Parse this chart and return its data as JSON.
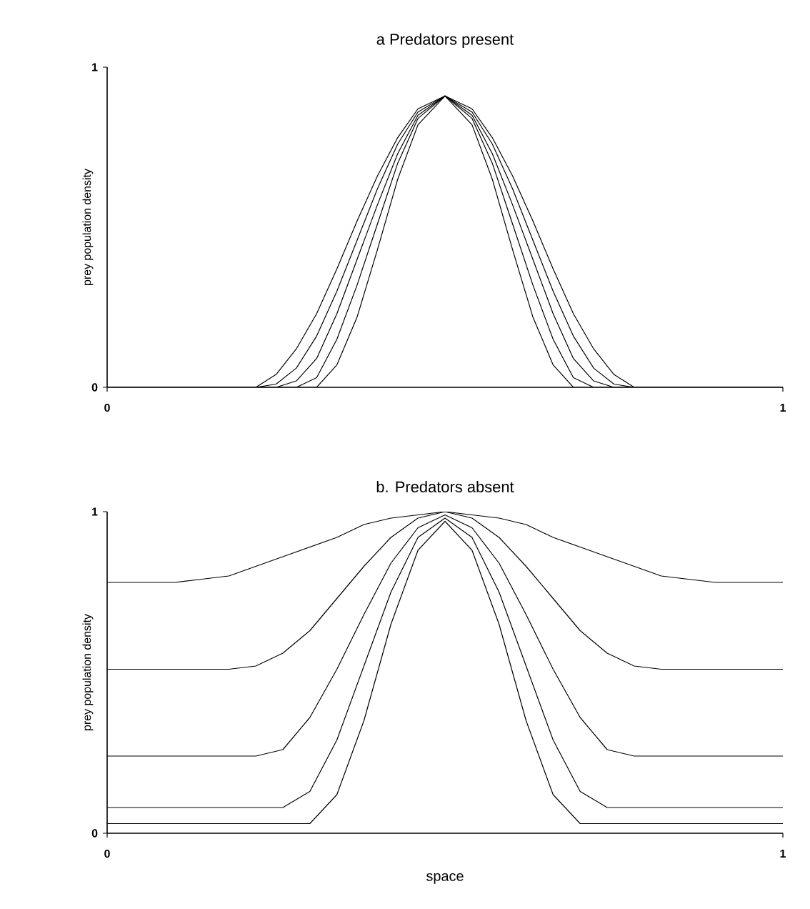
{
  "chart_data": [
    {
      "type": "line",
      "title": "a  Predators  present",
      "ylabel": "prey population density",
      "xlim": [
        0,
        1
      ],
      "ylim": [
        0,
        1
      ],
      "xticks": [
        0,
        1
      ],
      "yticks": [
        0,
        1
      ],
      "x": [
        0,
        0.22,
        0.25,
        0.28,
        0.31,
        0.34,
        0.37,
        0.4,
        0.43,
        0.46,
        0.5,
        0.54,
        0.57,
        0.6,
        0.63,
        0.66,
        0.69,
        0.72,
        0.75,
        0.78,
        1
      ],
      "series": [
        {
          "color": "#000000",
          "values": [
            0,
            0,
            0.04,
            0.12,
            0.23,
            0.37,
            0.52,
            0.66,
            0.78,
            0.87,
            0.91,
            0.87,
            0.78,
            0.66,
            0.52,
            0.37,
            0.23,
            0.12,
            0.04,
            0,
            0
          ]
        },
        {
          "color": "#000000",
          "values": [
            0,
            0,
            0.01,
            0.06,
            0.16,
            0.3,
            0.46,
            0.62,
            0.76,
            0.86,
            0.91,
            0.86,
            0.76,
            0.62,
            0.46,
            0.3,
            0.16,
            0.06,
            0.01,
            0,
            0
          ]
        },
        {
          "color": "#000000",
          "values": [
            0,
            0,
            0,
            0.02,
            0.09,
            0.23,
            0.4,
            0.57,
            0.73,
            0.85,
            0.91,
            0.85,
            0.73,
            0.57,
            0.4,
            0.23,
            0.09,
            0.02,
            0,
            0,
            0
          ]
        },
        {
          "color": "#000000",
          "values": [
            0,
            0,
            0,
            0,
            0.03,
            0.15,
            0.32,
            0.51,
            0.7,
            0.84,
            0.91,
            0.84,
            0.7,
            0.51,
            0.32,
            0.15,
            0.03,
            0,
            0,
            0,
            0
          ]
        },
        {
          "color": "#000000",
          "values": [
            0,
            0,
            0,
            0,
            0,
            0.07,
            0.22,
            0.43,
            0.65,
            0.82,
            0.91,
            0.82,
            0.65,
            0.43,
            0.22,
            0.07,
            0,
            0,
            0,
            0,
            0
          ]
        }
      ]
    },
    {
      "type": "line",
      "title": "b. Predators absent",
      "xlabel": "space",
      "ylabel": "prey population density",
      "xlim": [
        0,
        1
      ],
      "ylim": [
        0,
        1
      ],
      "xticks": [
        0,
        1
      ],
      "yticks": [
        0,
        1
      ],
      "x": [
        0,
        0.1,
        0.14,
        0.18,
        0.22,
        0.26,
        0.3,
        0.34,
        0.38,
        0.42,
        0.46,
        0.5,
        0.54,
        0.58,
        0.62,
        0.66,
        0.7,
        0.74,
        0.78,
        0.82,
        0.86,
        0.9,
        1
      ],
      "series": [
        {
          "color": "#000000",
          "values": [
            0.78,
            0.78,
            0.79,
            0.8,
            0.83,
            0.86,
            0.89,
            0.92,
            0.96,
            0.98,
            0.99,
            1.0,
            0.99,
            0.98,
            0.96,
            0.92,
            0.89,
            0.86,
            0.83,
            0.8,
            0.79,
            0.78,
            0.78
          ]
        },
        {
          "color": "#000000",
          "values": [
            0.51,
            0.51,
            0.51,
            0.51,
            0.52,
            0.56,
            0.63,
            0.73,
            0.83,
            0.92,
            0.98,
            1.0,
            0.98,
            0.92,
            0.83,
            0.73,
            0.63,
            0.56,
            0.52,
            0.51,
            0.51,
            0.51,
            0.51
          ]
        },
        {
          "color": "#000000",
          "values": [
            0.24,
            0.24,
            0.24,
            0.24,
            0.24,
            0.26,
            0.36,
            0.51,
            0.68,
            0.84,
            0.95,
            0.99,
            0.95,
            0.84,
            0.68,
            0.51,
            0.36,
            0.26,
            0.24,
            0.24,
            0.24,
            0.24,
            0.24
          ]
        },
        {
          "color": "#000000",
          "values": [
            0.08,
            0.08,
            0.08,
            0.08,
            0.08,
            0.08,
            0.13,
            0.29,
            0.52,
            0.75,
            0.92,
            0.98,
            0.92,
            0.75,
            0.52,
            0.29,
            0.13,
            0.08,
            0.08,
            0.08,
            0.08,
            0.08,
            0.08
          ]
        },
        {
          "color": "#000000",
          "values": [
            0.03,
            0.03,
            0.03,
            0.03,
            0.03,
            0.03,
            0.03,
            0.12,
            0.35,
            0.65,
            0.88,
            0.97,
            0.88,
            0.65,
            0.35,
            0.12,
            0.03,
            0.03,
            0.03,
            0.03,
            0.03,
            0.03,
            0.03
          ]
        }
      ]
    }
  ]
}
